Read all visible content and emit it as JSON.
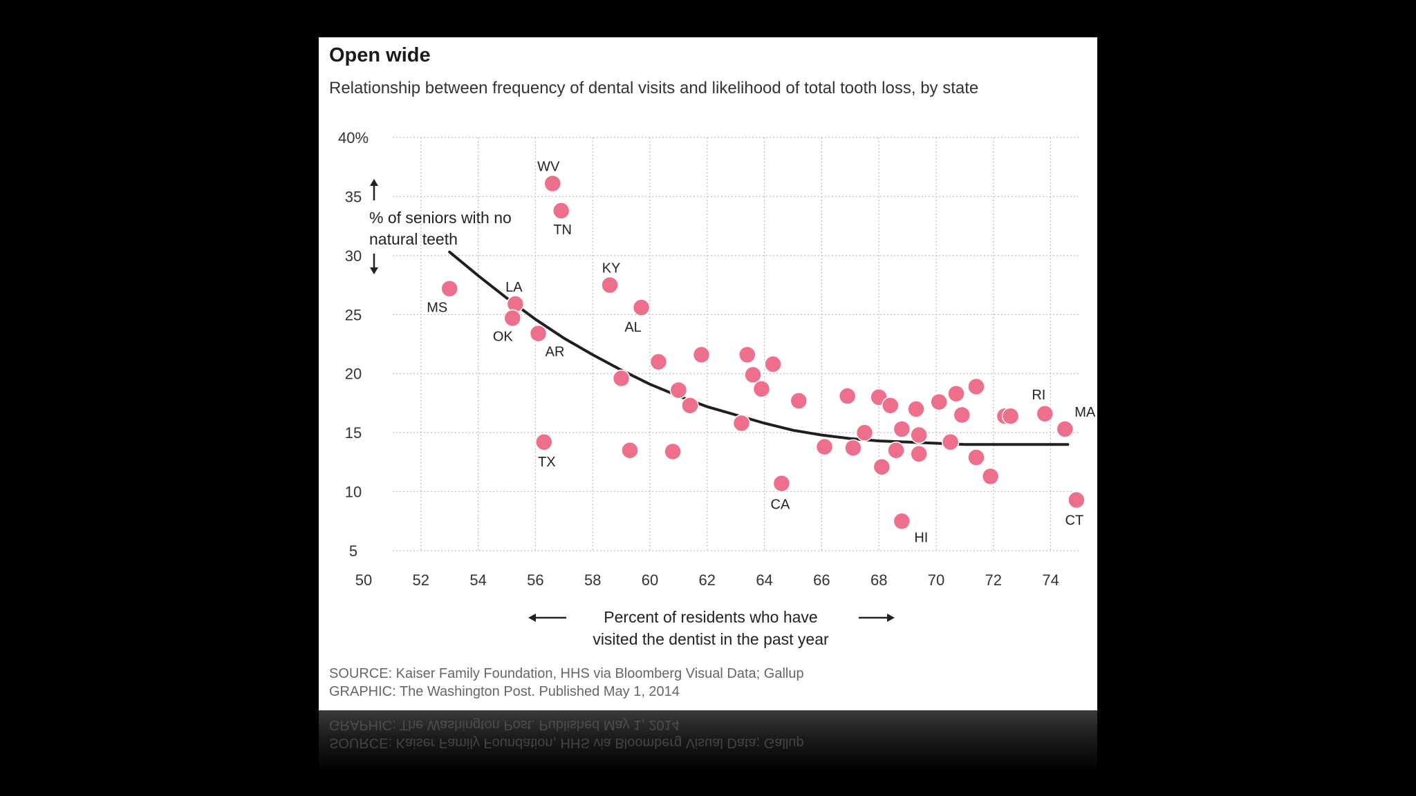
{
  "title": "Open wide",
  "subtitle": "Relationship between frequency of dental visits and likelihood of total tooth loss, by state",
  "y_axis_note": [
    "% of seniors with no",
    "natural teeth"
  ],
  "x_axis_note": [
    "Percent of residents who have",
    "visited the dentist in the past year"
  ],
  "source_lines": [
    "SOURCE: Kaiser Family Foundation, HHS via Bloomberg Visual Data; Gallup",
    "GRAPHIC: The Washington Post. Published May 1, 2014"
  ],
  "colors": {
    "dot": "#ee6f8c",
    "trend": "#1f1f1f",
    "grid": "#bdbdbd",
    "background": "#000000",
    "card": "#ffffff"
  },
  "chart_data": {
    "type": "scatter",
    "title": "Open wide",
    "subtitle": "Relationship between frequency of dental visits and likelihood of total tooth loss, by state",
    "xlabel": "Percent of residents who have visited the dentist in the past year",
    "ylabel": "% of seniors with no natural teeth",
    "xlim": [
      50,
      75
    ],
    "ylim": [
      5,
      40
    ],
    "xticks": [
      "50",
      "52",
      "54",
      "56",
      "58",
      "60",
      "62",
      "64",
      "66",
      "68",
      "70",
      "72",
      "74"
    ],
    "yticks": [
      "5",
      "10",
      "15",
      "20",
      "25",
      "30",
      "35",
      "40%"
    ],
    "grid": true,
    "points": [
      {
        "x": 56.6,
        "y": 36.1,
        "label": "WV"
      },
      {
        "x": 56.9,
        "y": 33.8,
        "label": "TN"
      },
      {
        "x": 58.6,
        "y": 27.5,
        "label": "KY"
      },
      {
        "x": 59.7,
        "y": 25.6,
        "label": "AL"
      },
      {
        "x": 53.0,
        "y": 27.2,
        "label": "MS"
      },
      {
        "x": 55.3,
        "y": 25.9,
        "label": "LA"
      },
      {
        "x": 55.2,
        "y": 24.7,
        "label": "OK"
      },
      {
        "x": 56.1,
        "y": 23.4,
        "label": "AR"
      },
      {
        "x": 56.3,
        "y": 14.2,
        "label": "TX"
      },
      {
        "x": 64.6,
        "y": 10.7,
        "label": "CA"
      },
      {
        "x": 68.8,
        "y": 7.5,
        "label": "HI"
      },
      {
        "x": 73.8,
        "y": 16.6,
        "label": "RI"
      },
      {
        "x": 74.5,
        "y": 15.3,
        "label": "MA"
      },
      {
        "x": 74.9,
        "y": 9.3,
        "label": "CT"
      },
      {
        "x": 59.0,
        "y": 19.6,
        "label": ""
      },
      {
        "x": 59.3,
        "y": 13.5,
        "label": ""
      },
      {
        "x": 60.3,
        "y": 21.0,
        "label": ""
      },
      {
        "x": 61.0,
        "y": 18.6,
        "label": ""
      },
      {
        "x": 60.8,
        "y": 13.4,
        "label": ""
      },
      {
        "x": 61.4,
        "y": 17.3,
        "label": ""
      },
      {
        "x": 61.8,
        "y": 21.6,
        "label": ""
      },
      {
        "x": 63.2,
        "y": 15.8,
        "label": ""
      },
      {
        "x": 63.4,
        "y": 21.6,
        "label": ""
      },
      {
        "x": 63.6,
        "y": 19.9,
        "label": ""
      },
      {
        "x": 63.9,
        "y": 18.7,
        "label": ""
      },
      {
        "x": 64.3,
        "y": 20.8,
        "label": ""
      },
      {
        "x": 65.2,
        "y": 17.7,
        "label": ""
      },
      {
        "x": 66.1,
        "y": 13.8,
        "label": ""
      },
      {
        "x": 66.9,
        "y": 18.1,
        "label": ""
      },
      {
        "x": 67.1,
        "y": 13.7,
        "label": ""
      },
      {
        "x": 67.5,
        "y": 15.0,
        "label": ""
      },
      {
        "x": 68.0,
        "y": 18.0,
        "label": ""
      },
      {
        "x": 68.1,
        "y": 12.1,
        "label": ""
      },
      {
        "x": 68.4,
        "y": 17.3,
        "label": ""
      },
      {
        "x": 68.6,
        "y": 13.5,
        "label": ""
      },
      {
        "x": 68.8,
        "y": 15.3,
        "label": ""
      },
      {
        "x": 69.3,
        "y": 17.0,
        "label": ""
      },
      {
        "x": 69.4,
        "y": 14.8,
        "label": ""
      },
      {
        "x": 69.4,
        "y": 13.2,
        "label": ""
      },
      {
        "x": 70.1,
        "y": 17.6,
        "label": ""
      },
      {
        "x": 70.5,
        "y": 14.2,
        "label": ""
      },
      {
        "x": 70.7,
        "y": 18.3,
        "label": ""
      },
      {
        "x": 70.9,
        "y": 16.5,
        "label": ""
      },
      {
        "x": 71.4,
        "y": 18.9,
        "label": ""
      },
      {
        "x": 71.4,
        "y": 12.9,
        "label": ""
      },
      {
        "x": 71.9,
        "y": 11.3,
        "label": ""
      },
      {
        "x": 72.4,
        "y": 16.4,
        "label": ""
      },
      {
        "x": 72.6,
        "y": 16.4,
        "label": ""
      }
    ],
    "trend": [
      {
        "x": 53,
        "y": 30.3
      },
      {
        "x": 54,
        "y": 28.3
      },
      {
        "x": 55,
        "y": 26.4
      },
      {
        "x": 56,
        "y": 24.6
      },
      {
        "x": 57,
        "y": 23.0
      },
      {
        "x": 58,
        "y": 21.6
      },
      {
        "x": 59,
        "y": 20.3
      },
      {
        "x": 60,
        "y": 19.1
      },
      {
        "x": 61,
        "y": 18.1
      },
      {
        "x": 62,
        "y": 17.2
      },
      {
        "x": 63,
        "y": 16.5
      },
      {
        "x": 64,
        "y": 15.8
      },
      {
        "x": 65,
        "y": 15.2
      },
      {
        "x": 66,
        "y": 14.8
      },
      {
        "x": 67,
        "y": 14.5
      },
      {
        "x": 68,
        "y": 14.3
      },
      {
        "x": 69,
        "y": 14.2
      },
      {
        "x": 70,
        "y": 14.1
      },
      {
        "x": 71,
        "y": 14.0
      },
      {
        "x": 72,
        "y": 14.0
      },
      {
        "x": 73,
        "y": 14.0
      },
      {
        "x": 74,
        "y": 14.0
      },
      {
        "x": 74.6,
        "y": 14.0
      }
    ]
  }
}
